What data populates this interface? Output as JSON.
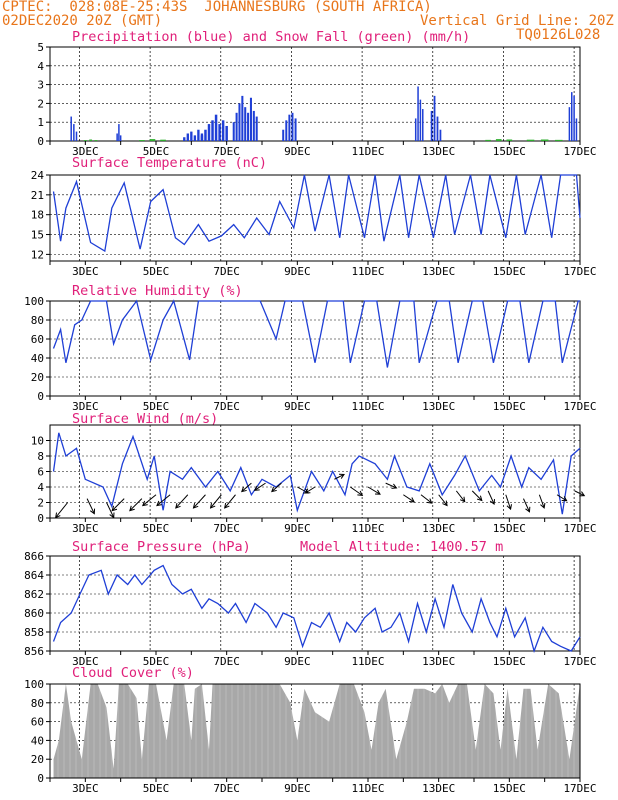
{
  "header": {
    "line1": "CPTEC:  028:08E-25:43S  JOHANNESBURG (SOUTH AFRICA)",
    "line2_left": "02DEC2020 20Z (GMT)",
    "line2_right": "Vertical Grid Line: 20Z",
    "code": "TQ0126L028"
  },
  "colors": {
    "header": "#e8751a",
    "title": "#e0207a",
    "line": "#1f3fd6",
    "snow": "#2fae2f",
    "cloud": "#a8a8a8",
    "wind": "#000000"
  },
  "x_axis": {
    "labels": [
      "3DEC",
      "5DEC",
      "7DEC",
      "9DEC",
      "11DEC",
      "13DEC",
      "15DEC",
      "17DEC"
    ]
  },
  "chart_data": [
    {
      "type": "bar",
      "key": "precip",
      "title": "Precipitation (blue) and Snow Fall (green) (mm/h)",
      "ylim": [
        0,
        5
      ],
      "yticks": [
        0,
        1,
        2,
        3,
        4,
        5
      ],
      "series": [
        {
          "name": "Precipitation",
          "color": "#1f3fd6",
          "segments": [
            {
              "x": [
                2.6,
                2.75
              ],
              "v": [
                1.3,
                0.9,
                0.5
              ]
            },
            {
              "x": [
                3.9,
                4.0
              ],
              "v": [
                0.4,
                0.9,
                0.3
              ]
            },
            {
              "x": [
                5.8,
                6.3
              ],
              "v": [
                0.2,
                0.4,
                0.5,
                0.3,
                0.6,
                0.4
              ]
            },
            {
              "x": [
                6.3,
                7.0
              ],
              "v": [
                0.3,
                0.6,
                0.9,
                1.1,
                1.4,
                0.9,
                1.1,
                0.8
              ]
            },
            {
              "x": [
                7.2,
                7.85
              ],
              "v": [
                1.0,
                1.5,
                2.0,
                2.4,
                1.8,
                1.5,
                2.3,
                1.6,
                1.3
              ]
            },
            {
              "x": [
                8.6,
                8.95
              ],
              "v": [
                0.6,
                1.1,
                1.4,
                1.5,
                1.2
              ]
            },
            {
              "x": [
                12.35,
                12.55
              ],
              "v": [
                1.2,
                2.9,
                2.2,
                1.7
              ]
            },
            {
              "x": [
                12.8,
                13.05
              ],
              "v": [
                1.6,
                2.4,
                1.3,
                0.6
              ]
            },
            {
              "x": [
                16.7,
                16.9
              ],
              "v": [
                1.8,
                2.6,
                2.4,
                1.2
              ]
            }
          ]
        },
        {
          "name": "Snow Fall",
          "color": "#2fae2f",
          "segments": [
            {
              "x": [
                3.0,
                3.3
              ],
              "v": [
                0.05,
                0.08,
                0.05
              ]
            },
            {
              "x": [
                4.6,
                5.2
              ],
              "v": [
                0.05,
                0.1,
                0.07
              ]
            },
            {
              "x": [
                14.4,
                15.0
              ],
              "v": [
                0.06,
                0.1,
                0.08
              ]
            },
            {
              "x": [
                15.6,
                16.4
              ],
              "v": [
                0.07,
                0.08,
                0.06
              ]
            }
          ]
        }
      ]
    },
    {
      "type": "line",
      "key": "temp",
      "title": "Surface Temperature (nC)",
      "ylim": [
        11,
        24
      ],
      "yticks": [
        12,
        15,
        18,
        21,
        24
      ],
      "series": [
        {
          "name": "Temperature",
          "color": "#1f3fd6",
          "x": [
            2.1,
            2.3,
            2.45,
            2.75,
            3.15,
            3.55,
            3.75,
            4.1,
            4.55,
            4.85,
            5.2,
            5.55,
            5.8,
            6.2,
            6.5,
            6.85,
            7.2,
            7.5,
            7.85,
            8.2,
            8.5,
            8.9,
            9.2,
            9.5,
            9.9,
            10.2,
            10.45,
            10.9,
            11.2,
            11.45,
            11.9,
            12.15,
            12.45,
            12.85,
            13.2,
            13.45,
            13.9,
            14.2,
            14.45,
            14.9,
            15.2,
            15.45,
            15.9,
            16.2,
            16.45,
            16.9,
            17.0
          ],
          "y": [
            21.5,
            14.0,
            19.0,
            23.0,
            13.8,
            12.5,
            19.0,
            22.8,
            12.8,
            20.0,
            21.8,
            14.5,
            13.5,
            16.5,
            14.0,
            14.8,
            16.5,
            14.5,
            17.5,
            15.0,
            20.0,
            16.0,
            24.0,
            15.5,
            24.0,
            14.5,
            24.0,
            14.5,
            24.0,
            14.0,
            24.0,
            14.5,
            24.0,
            14.5,
            24.0,
            15.0,
            24.0,
            15.0,
            24.0,
            14.5,
            24.0,
            15.0,
            24.0,
            14.5,
            24.0,
            24.0,
            17.5
          ]
        }
      ]
    },
    {
      "type": "line",
      "key": "rh",
      "title": "Relative Humidity (%)",
      "ylim": [
        0,
        100
      ],
      "yticks": [
        0,
        20,
        40,
        60,
        80,
        100
      ],
      "series": [
        {
          "name": "Relative Humidity",
          "color": "#1f3fd6",
          "x": [
            2.1,
            2.3,
            2.45,
            2.7,
            2.9,
            3.15,
            3.6,
            3.8,
            4.05,
            4.45,
            4.85,
            5.2,
            5.5,
            5.95,
            6.2,
            6.8,
            7.2,
            7.6,
            7.95,
            8.4,
            8.65,
            9.15,
            9.5,
            9.85,
            10.3,
            10.5,
            10.9,
            11.25,
            11.55,
            11.9,
            12.3,
            12.45,
            12.95,
            13.3,
            13.55,
            13.95,
            14.25,
            14.55,
            14.95,
            15.3,
            15.55,
            15.95,
            16.3,
            16.5,
            16.95,
            17.0
          ],
          "y": [
            50,
            70,
            35,
            75,
            80,
            100,
            100,
            55,
            80,
            100,
            38,
            80,
            100,
            38,
            100,
            100,
            100,
            100,
            100,
            60,
            100,
            100,
            35,
            100,
            100,
            35,
            100,
            100,
            30,
            100,
            100,
            35,
            100,
            100,
            35,
            100,
            100,
            35,
            100,
            100,
            35,
            100,
            100,
            35,
            100,
            100
          ]
        }
      ]
    },
    {
      "type": "line",
      "key": "wind",
      "title": "Surface Wind (m/s)",
      "ylim": [
        0,
        12
      ],
      "yticks": [
        0,
        2,
        4,
        6,
        8,
        10
      ],
      "series": [
        {
          "name": "Wind speed",
          "color": "#1f3fd6",
          "x": [
            2.1,
            2.25,
            2.45,
            2.75,
            3.0,
            3.5,
            3.75,
            4.05,
            4.35,
            4.75,
            4.95,
            5.2,
            5.4,
            5.75,
            6.0,
            6.4,
            6.75,
            7.1,
            7.4,
            7.7,
            8.0,
            8.4,
            8.8,
            9.0,
            9.4,
            9.75,
            10.0,
            10.35,
            10.55,
            10.75,
            11.2,
            11.55,
            11.75,
            12.1,
            12.45,
            12.75,
            13.1,
            13.45,
            13.75,
            14.15,
            14.5,
            14.75,
            15.05,
            15.35,
            15.55,
            15.9,
            16.25,
            16.5,
            16.75,
            17.0
          ],
          "y": [
            6,
            11,
            8,
            9,
            5,
            4,
            1.5,
            7,
            10.5,
            5,
            8,
            1,
            6,
            5,
            6.5,
            4,
            6,
            3.5,
            6.5,
            3,
            5,
            4,
            5.5,
            1,
            6,
            3.5,
            6,
            3,
            7,
            8,
            7,
            5,
            8,
            4,
            3.5,
            7,
            3,
            5.5,
            8,
            3.5,
            5.5,
            4,
            8,
            4,
            6.5,
            5,
            7.5,
            0.5,
            8,
            9
          ]
        }
      ],
      "arrows": [
        [
          2.5,
          2
        ],
        [
          3.05,
          2.5
        ],
        [
          3.6,
          2
        ],
        [
          4.1,
          2.5
        ],
        [
          4.6,
          2.5
        ],
        [
          5.0,
          3
        ],
        [
          5.4,
          3
        ],
        [
          5.9,
          3
        ],
        [
          6.4,
          3
        ],
        [
          6.85,
          3
        ],
        [
          7.25,
          3
        ],
        [
          7.7,
          4.5
        ],
        [
          8.1,
          4.5
        ],
        [
          8.55,
          4.5
        ],
        [
          9.0,
          4
        ],
        [
          9.5,
          4
        ],
        [
          10.05,
          5
        ],
        [
          10.5,
          4
        ],
        [
          11.0,
          4
        ],
        [
          11.5,
          4.5
        ],
        [
          12.0,
          3
        ],
        [
          12.5,
          3
        ],
        [
          13.0,
          3
        ],
        [
          13.5,
          3.5
        ],
        [
          13.95,
          3.5
        ],
        [
          14.4,
          3.5
        ],
        [
          14.9,
          3
        ],
        [
          15.4,
          2.5
        ],
        [
          15.85,
          3
        ],
        [
          16.35,
          3
        ],
        [
          16.85,
          3.5
        ]
      ],
      "arrow_dirs": [
        [
          20,
          -25
        ],
        [
          -12,
          -25
        ],
        [
          -12,
          -25
        ],
        [
          20,
          -20
        ],
        [
          20,
          -20
        ],
        [
          22,
          -18
        ],
        [
          22,
          -18
        ],
        [
          20,
          -22
        ],
        [
          20,
          -22
        ],
        [
          18,
          -22
        ],
        [
          18,
          -22
        ],
        [
          16,
          -14
        ],
        [
          18,
          -12
        ],
        [
          16,
          -14
        ],
        [
          -18,
          -10
        ],
        [
          16,
          -10
        ],
        [
          -16,
          8
        ],
        [
          -20,
          -14
        ],
        [
          -20,
          -12
        ],
        [
          -18,
          -8
        ],
        [
          -18,
          -12
        ],
        [
          -18,
          -14
        ],
        [
          -14,
          -18
        ],
        [
          -14,
          -18
        ],
        [
          -16,
          -16
        ],
        [
          -10,
          -22
        ],
        [
          -8,
          -24
        ],
        [
          -10,
          -22
        ],
        [
          -8,
          -22
        ],
        [
          -16,
          -10
        ],
        [
          -16,
          -8
        ]
      ]
    },
    {
      "type": "line",
      "key": "pres",
      "title": "Surface Pressure (hPa)",
      "annotation": "Model Altitude: 1400.57 m",
      "ylim": [
        856,
        866
      ],
      "yticks": [
        856,
        858,
        860,
        862,
        864,
        866
      ],
      "series": [
        {
          "name": "Pressure",
          "color": "#1f3fd6",
          "x": [
            2.1,
            2.3,
            2.6,
            2.85,
            3.1,
            3.45,
            3.65,
            3.9,
            4.2,
            4.4,
            4.6,
            4.95,
            5.2,
            5.45,
            5.75,
            6.0,
            6.3,
            6.5,
            6.75,
            7.05,
            7.25,
            7.55,
            7.8,
            8.15,
            8.4,
            8.6,
            8.9,
            9.15,
            9.4,
            9.65,
            9.9,
            10.2,
            10.4,
            10.65,
            10.9,
            11.2,
            11.4,
            11.65,
            11.9,
            12.15,
            12.4,
            12.65,
            12.9,
            13.15,
            13.4,
            13.65,
            13.95,
            14.2,
            14.45,
            14.65,
            14.9,
            15.15,
            15.45,
            15.7,
            15.95,
            16.2,
            16.45,
            16.75,
            17.0
          ],
          "y": [
            857,
            859,
            860,
            862,
            864,
            864.5,
            862,
            864,
            863,
            864,
            863,
            864.5,
            865,
            863,
            862,
            862.5,
            860.5,
            861.5,
            861,
            860,
            861,
            859,
            861,
            860,
            858.5,
            860,
            859.5,
            856.5,
            859,
            858.5,
            860,
            857,
            859,
            858,
            859.5,
            860.5,
            858,
            858.5,
            860,
            857,
            861,
            858,
            861.5,
            858.5,
            863,
            860,
            858,
            861.5,
            859,
            857.5,
            860.5,
            857.5,
            859.5,
            856,
            858.5,
            857,
            856.5,
            856,
            857.5
          ]
        }
      ]
    },
    {
      "type": "area",
      "key": "cloud",
      "title": "Cloud Cover (%)",
      "ylim": [
        0,
        100
      ],
      "yticks": [
        0,
        20,
        40,
        60,
        80,
        100
      ],
      "series": [
        {
          "name": "Cloud Cover",
          "color": "#a8a8a8",
          "x": [
            2.1,
            2.25,
            2.45,
            2.6,
            2.9,
            3.15,
            3.35,
            3.6,
            3.8,
            3.95,
            4.2,
            4.45,
            4.6,
            4.8,
            5.0,
            5.3,
            5.5,
            5.8,
            6.0,
            6.1,
            6.3,
            6.5,
            6.6,
            6.9,
            7.2,
            7.5,
            7.8,
            8.2,
            8.5,
            8.8,
            9.0,
            9.2,
            9.5,
            9.9,
            10.2,
            10.6,
            10.9,
            11.1,
            11.3,
            11.5,
            11.8,
            12.1,
            12.3,
            12.6,
            12.9,
            13.1,
            13.3,
            13.55,
            13.8,
            14.05,
            14.3,
            14.55,
            14.75,
            14.95,
            15.2,
            15.4,
            15.6,
            15.8,
            16.1,
            16.4,
            16.7,
            17.0
          ],
          "y": [
            20,
            40,
            100,
            60,
            20,
            100,
            100,
            75,
            10,
            100,
            100,
            85,
            20,
            100,
            100,
            40,
            100,
            100,
            40,
            95,
            100,
            30,
            100,
            100,
            100,
            100,
            100,
            100,
            100,
            80,
            40,
            95,
            70,
            60,
            100,
            100,
            70,
            30,
            80,
            95,
            20,
            60,
            95,
            95,
            90,
            100,
            80,
            100,
            100,
            30,
            100,
            90,
            30,
            95,
            20,
            95,
            95,
            30,
            100,
            90,
            20,
            100
          ]
        }
      ]
    }
  ]
}
